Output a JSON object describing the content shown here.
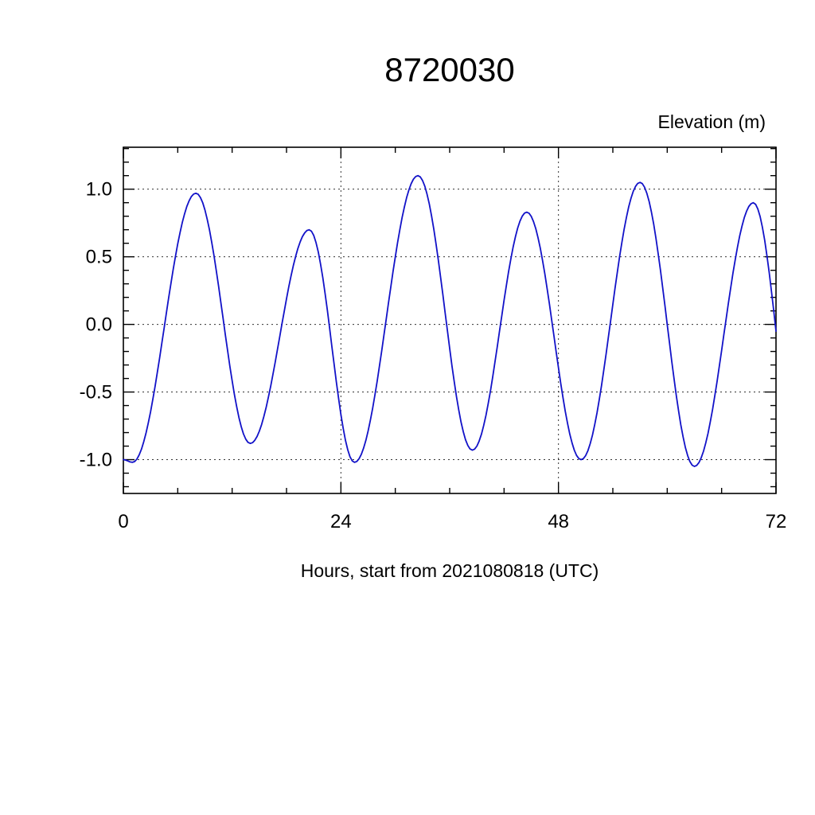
{
  "chart_data": {
    "type": "line",
    "title": "8720030",
    "right_label": "Elevation (m)",
    "xlabel": "Hours, start from 2021080818 (UTC)",
    "x_unit": "hours",
    "y_unit": "m",
    "xlim": [
      0,
      72
    ],
    "ylim": [
      -1.25,
      1.31
    ],
    "xticks": {
      "major": [
        0,
        24,
        48,
        72
      ],
      "labels": [
        "0",
        "24",
        "48",
        "72"
      ],
      "minor_step": 6
    },
    "yticks": {
      "major": [
        -1.0,
        -0.5,
        0.0,
        0.5,
        1.0
      ],
      "labels": [
        "-1.0",
        "-0.5",
        "0.0",
        "0.5",
        "1.0"
      ],
      "minor_step": 0.1
    },
    "grid": {
      "x": [
        24,
        48
      ],
      "y": [
        -1.0,
        -0.5,
        0.0,
        0.5,
        1.0
      ],
      "style": "dashed"
    },
    "series": [
      {
        "name": "tidal-elevation",
        "color": "#1212c8",
        "interpolation": "cosine-between-extremes",
        "extremes": [
          [
            0,
            -1.0
          ],
          [
            1,
            -1.02
          ],
          [
            8,
            0.97
          ],
          [
            14,
            -0.88
          ],
          [
            20.5,
            0.7
          ],
          [
            25.5,
            -1.02
          ],
          [
            32.5,
            1.1
          ],
          [
            38.5,
            -0.93
          ],
          [
            44.5,
            0.83
          ],
          [
            50.5,
            -1.0
          ],
          [
            57,
            1.05
          ],
          [
            63,
            -1.05
          ],
          [
            69.5,
            0.9
          ],
          [
            74.5,
            -1.0
          ]
        ]
      }
    ],
    "legend": "none",
    "frame_color": "#000000",
    "background": "#ffffff"
  }
}
